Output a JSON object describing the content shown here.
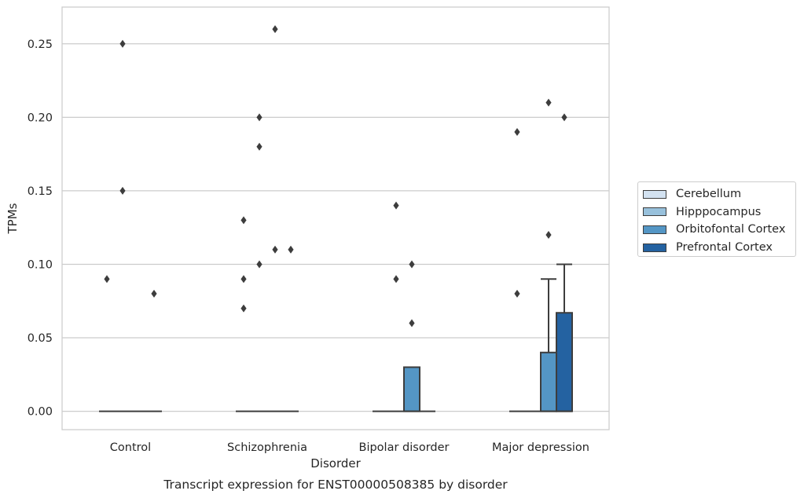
{
  "chart_data": {
    "type": "box",
    "title": "Transcript expression for ENST00000508385 by disorder",
    "xlabel": "Disorder",
    "ylabel": "TPMs",
    "ylim": [
      -0.0125,
      0.275
    ],
    "yticks": [
      0.0,
      0.05,
      0.1,
      0.15,
      0.2,
      0.25
    ],
    "ytick_labels": [
      "0.00",
      "0.05",
      "0.10",
      "0.15",
      "0.20",
      "0.25"
    ],
    "grid": "horizontal",
    "legend_position": "right",
    "categories": [
      "Control",
      "Schizophrenia",
      "Bipolar disorder",
      "Major depression"
    ],
    "series": [
      {
        "name": "Cerebellum",
        "color": "#d3e2f1",
        "boxes": [
          {
            "q1": 0,
            "median": 0,
            "q3": 0,
            "whisker_low": 0,
            "whisker_high": 0,
            "outliers": [
              0.09
            ]
          },
          {
            "q1": 0,
            "median": 0,
            "q3": 0,
            "whisker_low": 0,
            "whisker_high": 0,
            "outliers": [
              0.13,
              0.09,
              0.07
            ]
          },
          {
            "q1": 0,
            "median": 0,
            "q3": 0,
            "whisker_low": 0,
            "whisker_high": 0,
            "outliers": []
          },
          {
            "q1": 0,
            "median": 0,
            "q3": 0,
            "whisker_low": 0,
            "whisker_high": 0,
            "outliers": [
              0.19,
              0.08
            ]
          }
        ]
      },
      {
        "name": "Hipppocampus",
        "color": "#98c1dc",
        "boxes": [
          {
            "q1": 0,
            "median": 0,
            "q3": 0,
            "whisker_low": 0,
            "whisker_high": 0,
            "outliers": [
              0.25,
              0.15
            ]
          },
          {
            "q1": 0,
            "median": 0,
            "q3": 0,
            "whisker_low": 0,
            "whisker_high": 0,
            "outliers": [
              0.2,
              0.18,
              0.1
            ]
          },
          {
            "q1": 0,
            "median": 0,
            "q3": 0,
            "whisker_low": 0,
            "whisker_high": 0,
            "outliers": [
              0.14,
              0.09
            ]
          },
          {
            "q1": 0,
            "median": 0,
            "q3": 0,
            "whisker_low": 0,
            "whisker_high": 0,
            "outliers": []
          }
        ]
      },
      {
        "name": "Orbitofontal Cortex",
        "color": "#5496c5",
        "boxes": [
          {
            "q1": 0,
            "median": 0,
            "q3": 0,
            "whisker_low": 0,
            "whisker_high": 0,
            "outliers": []
          },
          {
            "q1": 0,
            "median": 0,
            "q3": 0,
            "whisker_low": 0,
            "whisker_high": 0,
            "outliers": [
              0.26,
              0.11
            ]
          },
          {
            "q1": 0,
            "median": 0,
            "q3": 0.03,
            "whisker_low": 0,
            "whisker_high": 0.03,
            "outliers": [
              0.1,
              0.06
            ]
          },
          {
            "q1": 0,
            "median": 0,
            "q3": 0.04,
            "whisker_low": 0,
            "whisker_high": 0.09,
            "outliers": [
              0.21,
              0.12
            ]
          }
        ]
      },
      {
        "name": "Prefrontal Cortex",
        "color": "#2462a1",
        "boxes": [
          {
            "q1": 0,
            "median": 0,
            "q3": 0,
            "whisker_low": 0,
            "whisker_high": 0,
            "outliers": [
              0.08
            ]
          },
          {
            "q1": 0,
            "median": 0,
            "q3": 0,
            "whisker_low": 0,
            "whisker_high": 0,
            "outliers": [
              0.11
            ]
          },
          {
            "q1": 0,
            "median": 0,
            "q3": 0,
            "whisker_low": 0,
            "whisker_high": 0,
            "outliers": []
          },
          {
            "q1": 0,
            "median": 0,
            "q3": 0.067,
            "whisker_low": 0,
            "whisker_high": 0.1,
            "outliers": [
              0.2
            ]
          }
        ]
      }
    ]
  }
}
